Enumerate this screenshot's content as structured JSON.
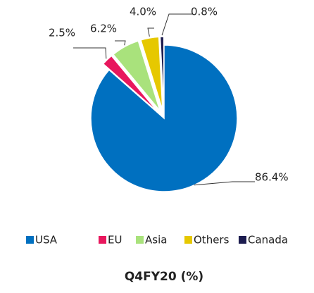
{
  "chart_data": {
    "type": "pie",
    "title": "Q4FY20 (%)",
    "categories": [
      "USA",
      "EU",
      "Asia",
      "Others",
      "Canada"
    ],
    "values": [
      86.4,
      2.5,
      6.2,
      4.0,
      0.8
    ],
    "value_labels": [
      "86.4%",
      "2.5%",
      "6.2%",
      "4.0%",
      "0.8%"
    ],
    "colors": [
      "#0070c0",
      "#e8175d",
      "#a9e27c",
      "#e6c800",
      "#1c1c4f"
    ]
  }
}
